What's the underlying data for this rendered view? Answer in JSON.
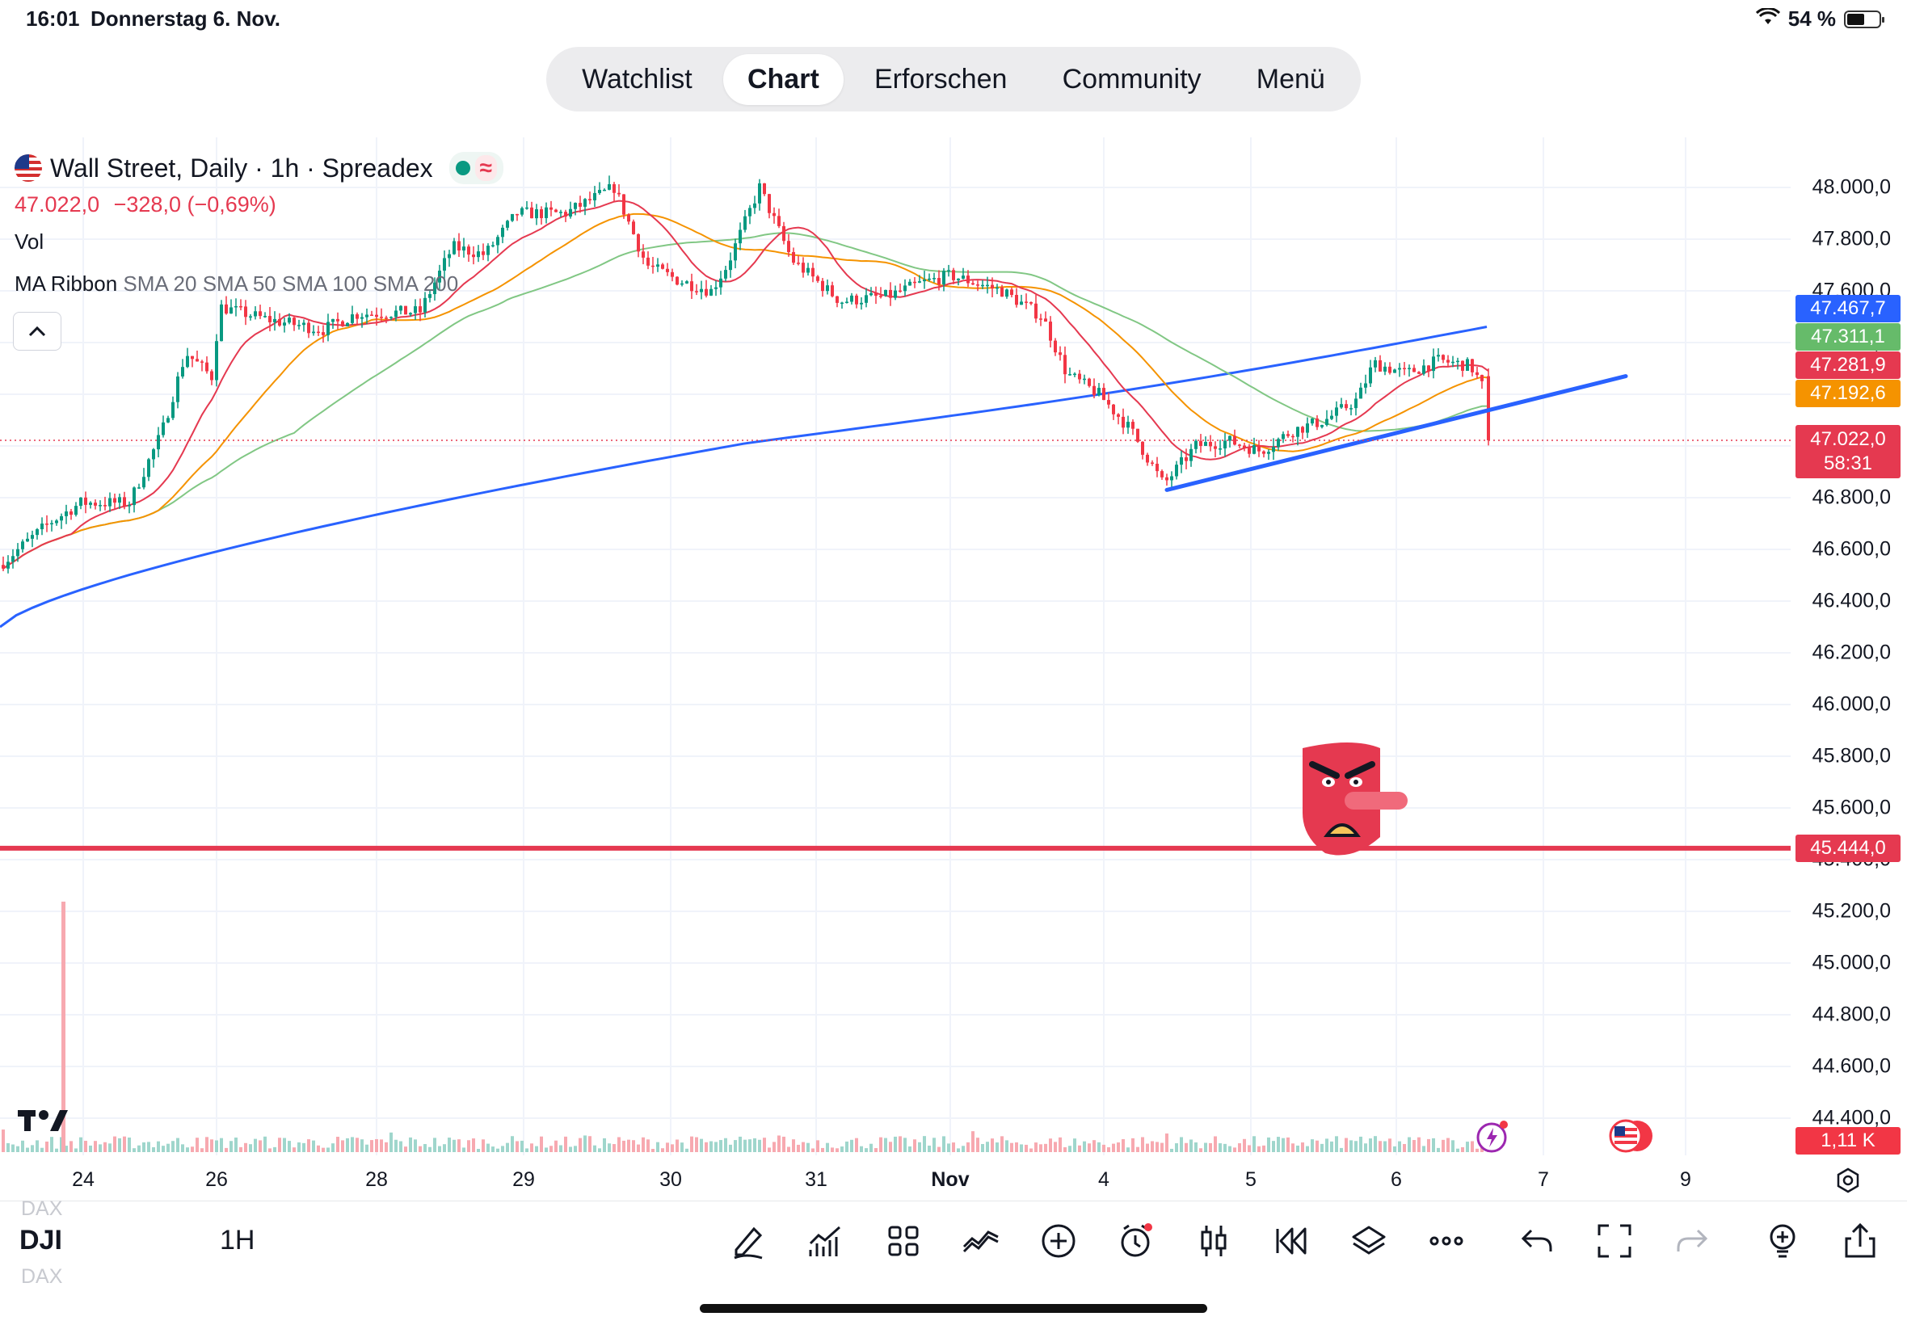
{
  "status_bar": {
    "time": "16:01",
    "date": "Donnerstag 6. Nov.",
    "battery": "54 %",
    "battery_level": 0.54
  },
  "nav": {
    "tabs": [
      {
        "label": "Watchlist",
        "active": false
      },
      {
        "label": "Chart",
        "active": true
      },
      {
        "label": "Erforschen",
        "active": false
      },
      {
        "label": "Community",
        "active": false
      },
      {
        "label": "Menü",
        "active": false
      }
    ]
  },
  "header": {
    "title": "Wall Street, Daily · 1h · Spreadex",
    "price": "47.022,0",
    "change": "−328,0 (−0,69%)",
    "vol_label": "Vol",
    "ma_name": "MA Ribbon",
    "ma_params": "SMA 20 SMA 50 SMA 100 SMA 200"
  },
  "chart_data": {
    "type": "candlestick",
    "y_ticks": [
      "48.000,0",
      "47.800,0",
      "47.600,0",
      "47.400,0",
      "47.200,0",
      "47.000,0",
      "46.800,0",
      "46.600,0",
      "46.400,0",
      "46.200,0",
      "46.000,0",
      "45.800,0",
      "45.600,0",
      "45.400,0",
      "45.200,0",
      "45.000,0",
      "44.800,0",
      "44.600,0",
      "44.400,0"
    ],
    "y_values": [
      48000,
      47800,
      47600,
      47400,
      47200,
      47000,
      46800,
      46600,
      46400,
      46200,
      46000,
      45800,
      45600,
      45400,
      45200,
      45000,
      44800,
      44600,
      44400
    ],
    "x_labels": [
      "24",
      "26",
      "28",
      "29",
      "30",
      "31",
      "Nov",
      "4",
      "5",
      "6",
      "7",
      "9"
    ],
    "price_labels": [
      {
        "text": "47.467,7",
        "value": 47467.7,
        "color": "#2962ff"
      },
      {
        "text": "47.311,1",
        "value": 47311.1,
        "color": "#66bb6a"
      },
      {
        "text": "47.281,9",
        "value": 47281.9,
        "color": "#e53950"
      },
      {
        "text": "47.192,6",
        "value": 47192.6,
        "color": "#f59300"
      },
      {
        "text": "47.022,0",
        "value": 47022.0,
        "color": "#e53950"
      },
      {
        "text": "45.444,0",
        "value": 45444.0,
        "color": "#e53950"
      }
    ],
    "countdown": "58:31",
    "last_price": 47022.0,
    "horizontal_line": 45444.0,
    "volume_label": "1,11 K",
    "colors": {
      "up": "#089981",
      "down": "#f23645",
      "sma20": "#e53950",
      "sma50": "#f59300",
      "sma100": "#81c784",
      "sma200": "#2962ff",
      "trendline": "#2962ff"
    }
  },
  "bottom_bar": {
    "symbol": "DJI",
    "ghost_symbol": "DAX",
    "interval": "1H",
    "tools": [
      "draw-icon",
      "indicators-icon",
      "layout-grid-icon",
      "compare-icon",
      "add-icon",
      "alert-icon",
      "bar-style-icon",
      "replay-icon",
      "layers-icon",
      "more-icon",
      "undo-icon",
      "fullscreen-icon",
      "redo-icon",
      "ideas-icon",
      "share-icon"
    ]
  }
}
